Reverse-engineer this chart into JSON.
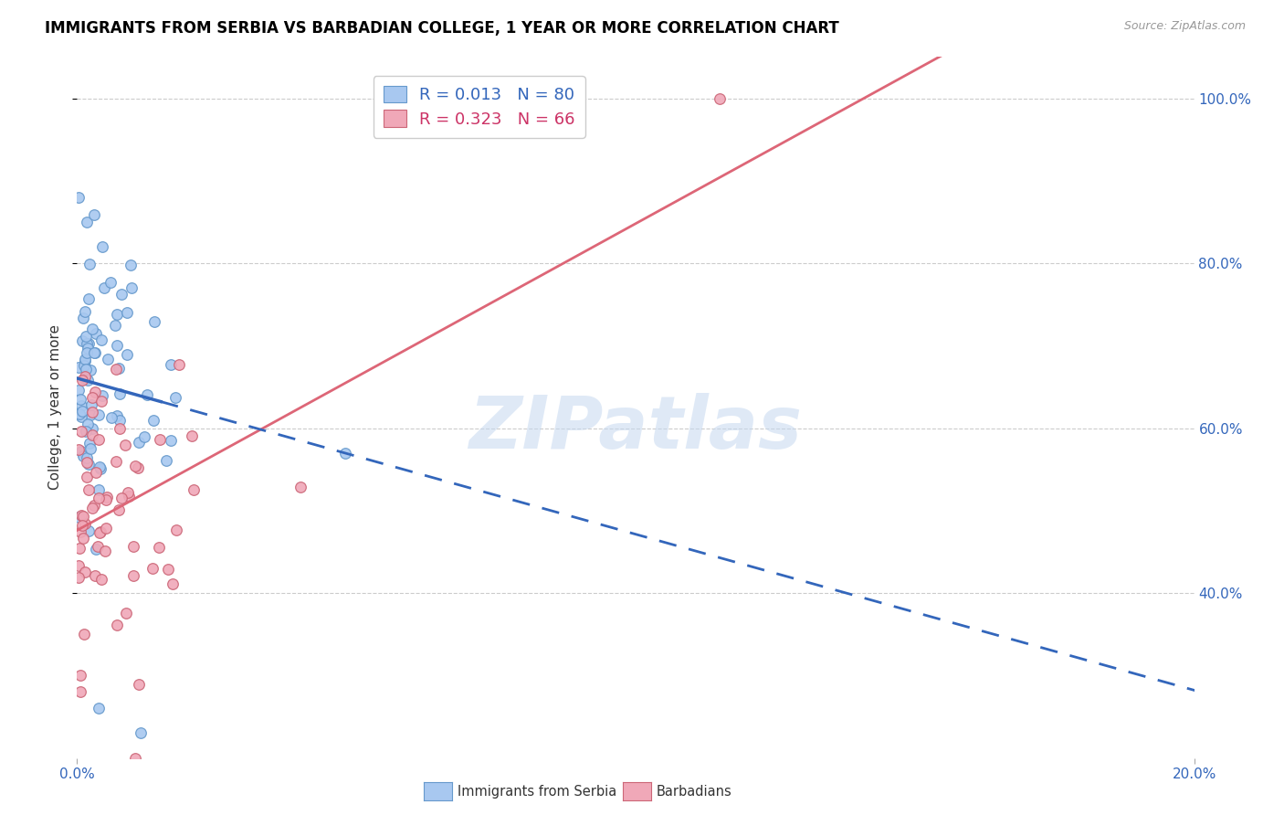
{
  "title": "IMMIGRANTS FROM SERBIA VS BARBADIAN COLLEGE, 1 YEAR OR MORE CORRELATION CHART",
  "source": "Source: ZipAtlas.com",
  "ylabel": "College, 1 year or more",
  "legend_label1": "Immigrants from Serbia",
  "legend_label2": "Barbadians",
  "legend_R1": "R = 0.013",
  "legend_N1": "N = 80",
  "legend_R2": "R = 0.323",
  "legend_N2": "N = 66",
  "color_blue": "#a8c8f0",
  "color_blue_edge": "#6699cc",
  "color_pink": "#f0a8b8",
  "color_pink_edge": "#cc6677",
  "color_trendblue": "#3366bb",
  "color_trendpink": "#dd6677",
  "watermark": "ZIPatlas",
  "xlim": [
    0.0,
    0.2
  ],
  "ylim": [
    0.2,
    1.05
  ],
  "ytick_positions": [
    0.4,
    0.6,
    0.8,
    1.0
  ],
  "ytick_labels": [
    "40.0%",
    "60.0%",
    "80.0%",
    "100.0%"
  ],
  "xtick_left": "0.0%",
  "xtick_right": "20.0%",
  "title_fontsize": 12,
  "source_fontsize": 9,
  "tick_fontsize": 11
}
